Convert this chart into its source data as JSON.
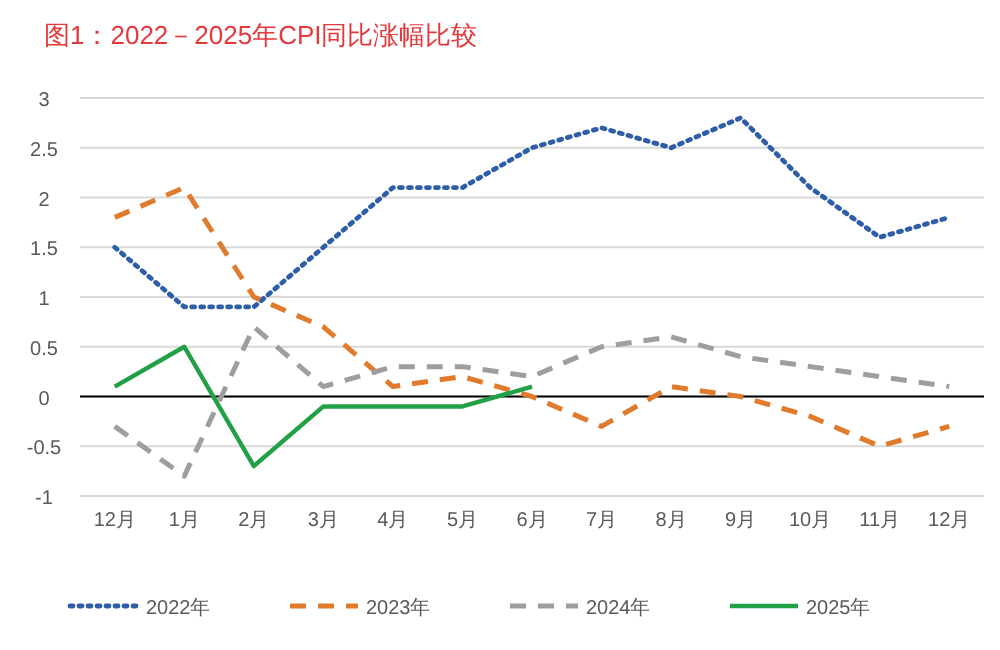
{
  "chart_data": {
    "type": "line",
    "title": "图1：2022－2025年CPI同比涨幅比较",
    "categories": [
      "12月",
      "1月",
      "2月",
      "3月",
      "4月",
      "5月",
      "6月",
      "7月",
      "8月",
      "9月",
      "10月",
      "11月",
      "12月"
    ],
    "series": [
      {
        "name": "2022年",
        "color": "#2e5ea8",
        "line_style": "dotted",
        "values": [
          1.5,
          0.9,
          0.9,
          1.5,
          2.1,
          2.1,
          2.5,
          2.7,
          2.5,
          2.8,
          2.1,
          1.6,
          1.8
        ]
      },
      {
        "name": "2023年",
        "color": "#e07b2e",
        "line_style": "dashed",
        "values": [
          1.8,
          2.1,
          1.0,
          0.7,
          0.1,
          0.2,
          0.0,
          -0.3,
          0.1,
          0.0,
          -0.2,
          -0.5,
          -0.3
        ]
      },
      {
        "name": "2024年",
        "color": "#9e9e9e",
        "line_style": "dashed",
        "values": [
          -0.3,
          -0.8,
          0.7,
          0.1,
          0.3,
          0.3,
          0.2,
          0.5,
          0.6,
          0.4,
          0.3,
          0.2,
          0.1
        ]
      },
      {
        "name": "2025年",
        "color": "#22a045",
        "line_style": "solid",
        "values": [
          0.1,
          0.5,
          -0.7,
          -0.1,
          -0.1,
          -0.1,
          0.1,
          null,
          null,
          null,
          null,
          null,
          null
        ]
      }
    ],
    "ylim": [
      -1,
      3
    ],
    "yticks": [
      -1,
      -0.5,
      0,
      0.5,
      1,
      1.5,
      2,
      2.5,
      3
    ],
    "grid": "y",
    "legend": "bottom"
  }
}
